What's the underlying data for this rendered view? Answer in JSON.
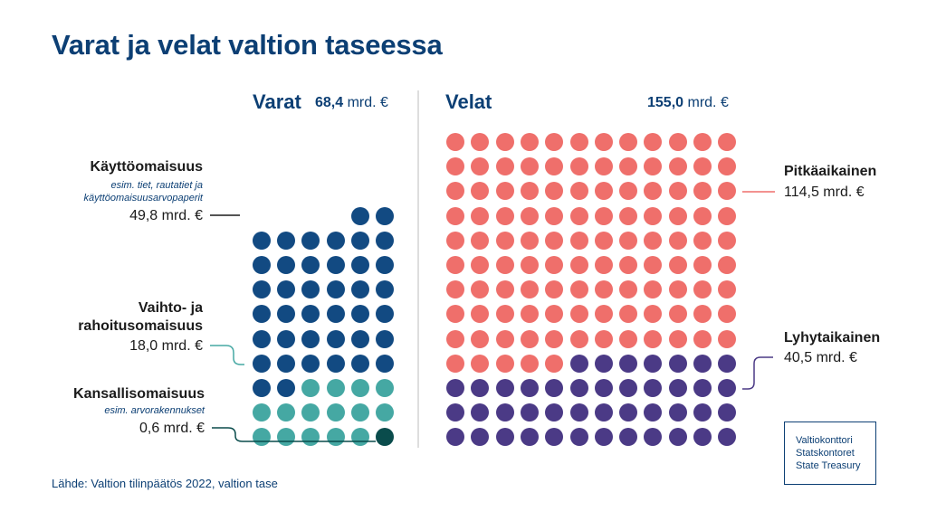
{
  "title": "Varat ja velat valtion taseessa",
  "assets": {
    "heading": "Varat",
    "total_num": "68,4",
    "total_unit": "mrd. €"
  },
  "liabilities": {
    "heading": "Velat",
    "total_num": "155,0",
    "total_unit": "mrd. €"
  },
  "labels": {
    "kaytto": {
      "name": "Käyttöomaisuus",
      "desc1": "esim. tiet, rautatiet ja",
      "desc2": "käyttöomaisuusarvopaperit",
      "value": "49,8 mrd. €"
    },
    "vaihto": {
      "name1": "Vaihto- ja",
      "name2": "rahoitusomaisuus",
      "value": "18,0 mrd. €"
    },
    "kansallis": {
      "name": "Kansallisomaisuus",
      "desc": "esim. arvorakennukset",
      "value": "0,6 mrd. €"
    },
    "pitka": {
      "name": "Pitkäaikainen",
      "value": "114,5 mrd. €"
    },
    "lyhyt": {
      "name": "Lyhytaikainen",
      "value": "40,5 mrd. €"
    }
  },
  "source": "Lähde: Valtion tilinpäätös 2022, valtion tase",
  "logo": [
    "Valtiokonttori",
    "Statskontoret",
    "State Treasury"
  ],
  "chart_data": {
    "type": "waffle",
    "unit": "mrd. €",
    "series": [
      {
        "group": "Varat",
        "name": "Käyttöomaisuus",
        "value": 49.8,
        "dots": 40,
        "color": "#124a82"
      },
      {
        "group": "Varat",
        "name": "Vaihto- ja rahoitusomaisuus",
        "value": 18.0,
        "dots": 15,
        "color": "#45a8a3"
      },
      {
        "group": "Varat",
        "name": "Kansallisomaisuus",
        "value": 0.6,
        "dots": 1,
        "color": "#0a4c4c"
      },
      {
        "group": "Velat",
        "name": "Pitkäaikainen",
        "value": 114.5,
        "dots": 113,
        "color": "#ef6f6b"
      },
      {
        "group": "Velat",
        "name": "Lyhytaikainen",
        "value": 40.5,
        "dots": 43,
        "color": "#4b3a86"
      }
    ]
  }
}
